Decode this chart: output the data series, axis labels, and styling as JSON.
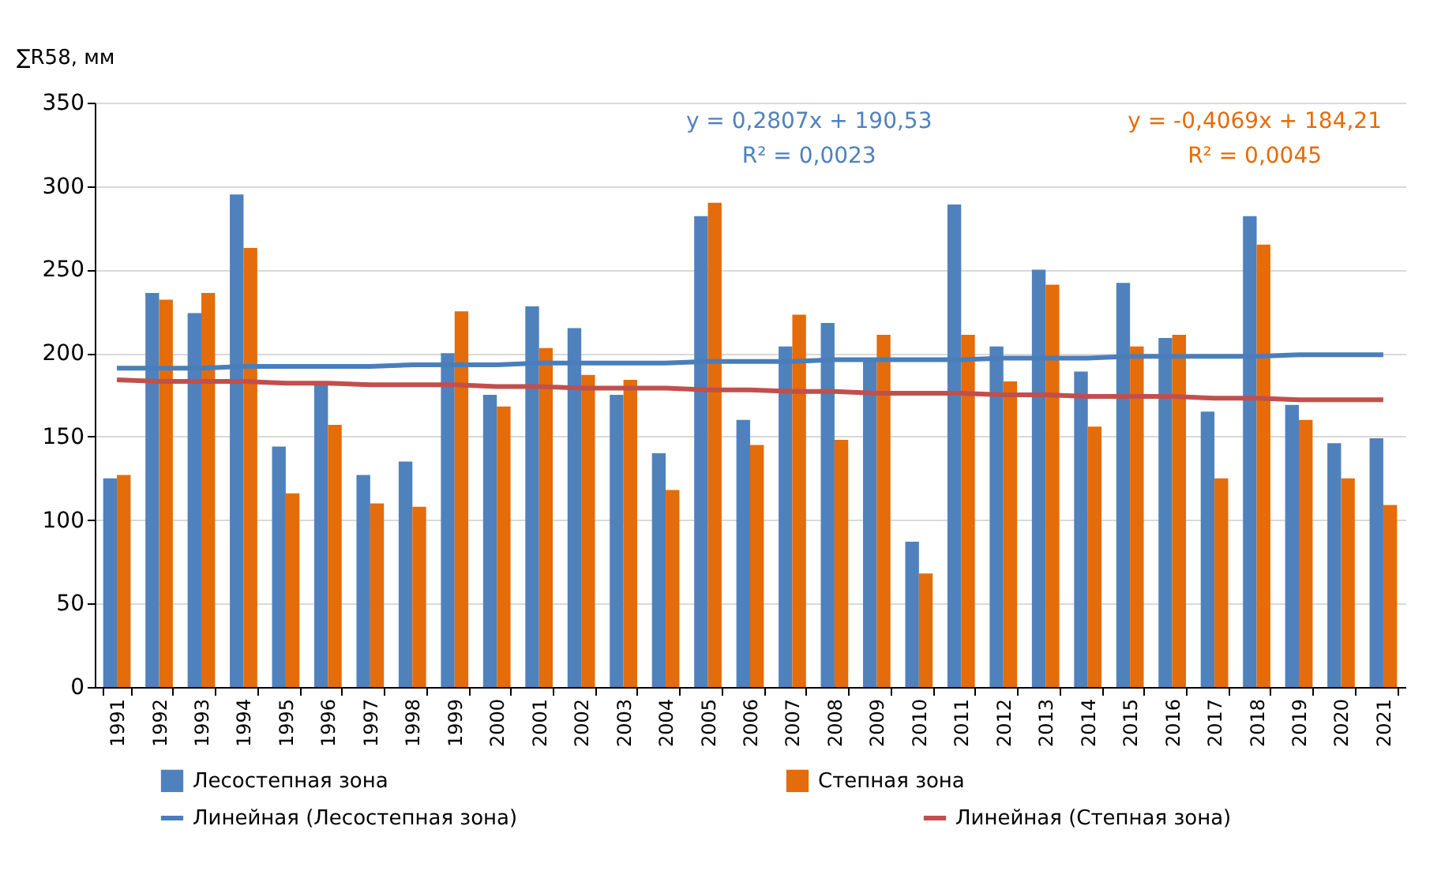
{
  "chart_data": {
    "type": "bar",
    "ylabel": "∑R58, мм",
    "categories": [
      "1991",
      "1992",
      "1993",
      "1994",
      "1995",
      "1996",
      "1997",
      "1998",
      "1999",
      "2000",
      "2001",
      "2002",
      "2003",
      "2004",
      "2005",
      "2006",
      "2007",
      "2008",
      "2009",
      "2010",
      "2011",
      "2012",
      "2013",
      "2014",
      "2015",
      "2016",
      "2017",
      "2018",
      "2019",
      "2020",
      "2021"
    ],
    "series": [
      {
        "name": "Лесостепная зона",
        "color": "#4f81bd",
        "values": [
          125,
          236,
          224,
          295,
          144,
          181,
          127,
          135,
          200,
          175,
          228,
          215,
          175,
          140,
          282,
          160,
          204,
          218,
          196,
          87,
          289,
          204,
          250,
          189,
          242,
          209,
          165,
          282,
          169,
          146,
          149
        ]
      },
      {
        "name": "Степная зона",
        "color": "#e46c0a",
        "values": [
          127,
          232,
          236,
          263,
          116,
          157,
          110,
          108,
          225,
          168,
          203,
          187,
          184,
          118,
          290,
          145,
          223,
          148,
          211,
          68,
          211,
          183,
          241,
          156,
          204,
          211,
          125,
          265,
          160,
          125,
          109
        ]
      },
      {
        "name": "Линейная (Лесостепная зона)",
        "type": "line",
        "color": "#4a7ebb",
        "values": [
          191,
          191,
          191,
          192,
          192,
          192,
          192,
          193,
          193,
          193,
          194,
          194,
          194,
          194,
          195,
          195,
          195,
          196,
          196,
          196,
          196,
          197,
          197,
          197,
          198,
          198,
          198,
          198,
          199,
          199,
          199
        ]
      },
      {
        "name": "Линейная (Степная зона)",
        "type": "line",
        "color": "#c0504d",
        "values": [
          184,
          183,
          183,
          183,
          182,
          182,
          181,
          181,
          181,
          180,
          180,
          179,
          179,
          179,
          178,
          178,
          177,
          177,
          176,
          176,
          176,
          175,
          175,
          174,
          174,
          174,
          173,
          173,
          172,
          172,
          172
        ]
      }
    ],
    "annotations": [
      "y = 0,2807x + 190,53",
      "R² = 0,0023",
      "y = -0,4069x + 184,21",
      "R² = 0,0045"
    ],
    "ylim": [
      0,
      350
    ],
    "yticks": [
      0,
      50,
      100,
      150,
      200,
      250,
      300,
      350
    ],
    "grid": "y",
    "legend": "bottom"
  }
}
